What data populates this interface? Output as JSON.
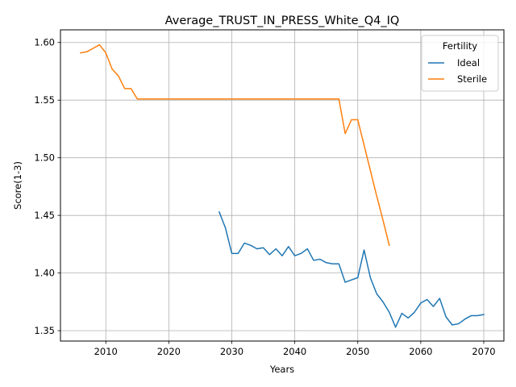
{
  "chart_data": {
    "type": "line",
    "title": "Average_TRUST_IN_PRESS_White_Q4_IQ",
    "xlabel": "Years",
    "ylabel": "Score(1-3)",
    "xlim": [
      2002.8,
      2073.2
    ],
    "ylim": [
      1.341,
      1.611
    ],
    "xticks": [
      2010,
      2020,
      2030,
      2040,
      2050,
      2060,
      2070
    ],
    "yticks": [
      1.35,
      1.4,
      1.45,
      1.5,
      1.55,
      1.6
    ],
    "ytick_labels": [
      "1.35",
      "1.40",
      "1.45",
      "1.50",
      "1.55",
      "1.60"
    ],
    "grid": true,
    "legend": {
      "title": "Fertility",
      "placement": "top-right"
    },
    "series": [
      {
        "name": "Ideal",
        "color": "#1f77b4",
        "x": [
          2028,
          2029,
          2030,
          2031,
          2032,
          2033,
          2034,
          2035,
          2036,
          2037,
          2038,
          2039,
          2040,
          2041,
          2042,
          2043,
          2044,
          2045,
          2046,
          2047,
          2048,
          2049,
          2050,
          2051,
          2052,
          2053,
          2054,
          2055,
          2056,
          2057,
          2058,
          2059,
          2060,
          2061,
          2062,
          2063,
          2064,
          2065,
          2066,
          2067,
          2068,
          2069,
          2070
        ],
        "y": [
          1.453,
          1.439,
          1.417,
          1.417,
          1.426,
          1.424,
          1.421,
          1.422,
          1.416,
          1.421,
          1.415,
          1.423,
          1.415,
          1.417,
          1.421,
          1.411,
          1.412,
          1.409,
          1.408,
          1.408,
          1.392,
          1.394,
          1.396,
          1.42,
          1.396,
          1.382,
          1.375,
          1.366,
          1.353,
          1.365,
          1.361,
          1.366,
          1.374,
          1.377,
          1.371,
          1.378,
          1.362,
          1.355,
          1.356,
          1.36,
          1.363,
          1.363,
          1.364
        ]
      },
      {
        "name": "Sterile",
        "color": "#ff7f0e",
        "x": [
          2006,
          2007,
          2008,
          2009,
          2010,
          2011,
          2012,
          2013,
          2014,
          2015,
          2016,
          2017,
          2018,
          2019,
          2020,
          2021,
          2022,
          2023,
          2024,
          2025,
          2026,
          2027,
          2028,
          2029,
          2030,
          2031,
          2032,
          2033,
          2034,
          2035,
          2036,
          2037,
          2038,
          2039,
          2040,
          2041,
          2042,
          2043,
          2044,
          2045,
          2046,
          2047,
          2048,
          2049,
          2050,
          2051,
          2052,
          2053,
          2054,
          2055
        ],
        "y": [
          1.591,
          1.592,
          1.595,
          1.598,
          1.591,
          1.577,
          1.571,
          1.56,
          1.56,
          1.551,
          1.551,
          1.551,
          1.551,
          1.551,
          1.551,
          1.551,
          1.551,
          1.551,
          1.551,
          1.551,
          1.551,
          1.551,
          1.551,
          1.551,
          1.551,
          1.551,
          1.551,
          1.551,
          1.551,
          1.551,
          1.551,
          1.551,
          1.551,
          1.551,
          1.551,
          1.551,
          1.551,
          1.551,
          1.551,
          1.551,
          1.551,
          1.551,
          1.521,
          1.533,
          1.533,
          1.511,
          1.489,
          1.467,
          1.446,
          1.424
        ]
      }
    ]
  }
}
